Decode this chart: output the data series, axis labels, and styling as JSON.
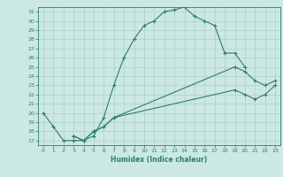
{
  "xlabel": "Humidex (Indice chaleur)",
  "xlim": [
    -0.5,
    23.5
  ],
  "ylim": [
    16.5,
    31.5
  ],
  "yticks": [
    17,
    18,
    19,
    20,
    21,
    22,
    23,
    24,
    25,
    26,
    27,
    28,
    29,
    30,
    31
  ],
  "xticks": [
    0,
    1,
    2,
    3,
    4,
    5,
    6,
    7,
    8,
    9,
    10,
    11,
    12,
    13,
    14,
    15,
    16,
    17,
    18,
    19,
    20,
    21,
    22,
    23
  ],
  "bg_color": "#cce8e4",
  "line_color": "#2d7d6e",
  "grid_color": "#aacfcb",
  "series": [
    {
      "x": [
        0,
        1,
        2,
        3,
        4,
        5,
        6,
        7,
        8,
        9,
        10,
        11,
        12,
        13,
        14,
        15,
        16,
        17,
        18,
        19,
        20
      ],
      "y": [
        20,
        18.5,
        17,
        17,
        17,
        17.5,
        19.5,
        23,
        26,
        28,
        29.5,
        30,
        31,
        31.2,
        31.5,
        30.5,
        30,
        29.5,
        26.5,
        26.5,
        25
      ]
    },
    {
      "x": [
        3,
        4,
        5,
        6,
        7,
        19,
        20,
        21,
        22,
        23
      ],
      "y": [
        17.5,
        17,
        18,
        18.5,
        19.5,
        25,
        24.5,
        23.5,
        23,
        23.5
      ]
    },
    {
      "x": [
        3,
        4,
        5,
        6,
        7,
        19,
        20,
        21,
        22,
        23
      ],
      "y": [
        17.5,
        17,
        18,
        18.5,
        19.5,
        22.5,
        22,
        21.5,
        22,
        23
      ]
    }
  ]
}
